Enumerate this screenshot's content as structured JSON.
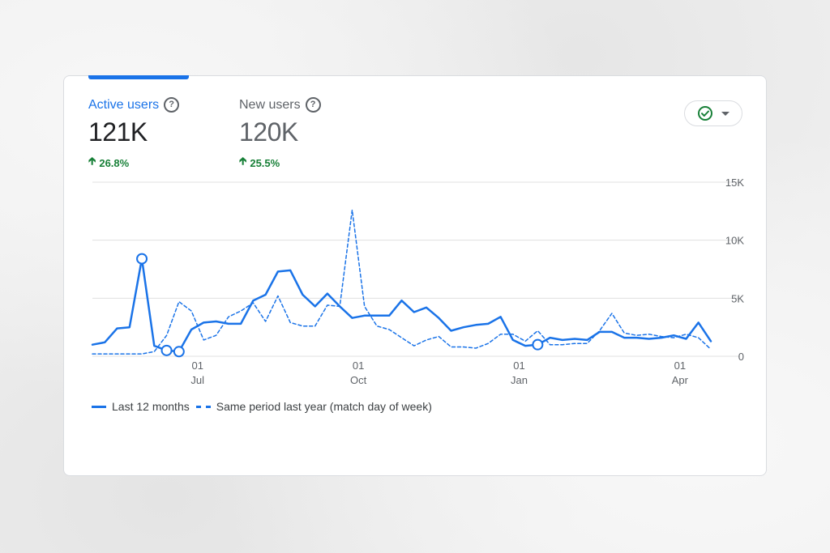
{
  "metrics": [
    {
      "label": "Active users",
      "value": "121K",
      "change": "26.8%",
      "selected": true
    },
    {
      "label": "New users",
      "value": "120K",
      "change": "25.5%",
      "selected": false
    }
  ],
  "colors": {
    "accent": "#1a73e8",
    "positive": "#188038",
    "grid": "#e0e0e0",
    "text_secondary": "#5f6368"
  },
  "icons": {
    "help": "question-circle-icon",
    "status": "check-circle-icon",
    "dropdown": "caret-down-icon",
    "change": "arrow-up-icon"
  },
  "legend": {
    "current": "Last 12 months",
    "previous": "Same period last year (match day of week)"
  },
  "chart_data": {
    "type": "line",
    "y_ticks": [
      "15K",
      "10K",
      "5K",
      "0"
    ],
    "ylim": [
      0,
      15000
    ],
    "x_ticks": [
      {
        "day": "01",
        "month": "Jul",
        "index": 8.5
      },
      {
        "day": "01",
        "month": "Oct",
        "index": 21.5
      },
      {
        "day": "01",
        "month": "Jan",
        "index": 34.5
      },
      {
        "day": "01",
        "month": "Apr",
        "index": 47.5
      }
    ],
    "series": [
      {
        "name": "Last 12 months",
        "style": "solid",
        "values": [
          1000,
          1200,
          2400,
          2500,
          8400,
          900,
          500,
          400,
          2300,
          2900,
          3000,
          2800,
          2800,
          4800,
          5300,
          7300,
          7400,
          5300,
          4300,
          5400,
          4300,
          3300,
          3500,
          3500,
          3500,
          4800,
          3800,
          4200,
          3300,
          2200,
          2500,
          2700,
          2800,
          3400,
          1400,
          900,
          1000,
          1600,
          1400,
          1500,
          1400,
          2100,
          2100,
          1600,
          1600,
          1500,
          1600,
          1800,
          1500,
          2900,
          1300
        ],
        "markers": [
          4,
          6,
          7,
          36
        ]
      },
      {
        "name": "Same period last year (match day of week)",
        "style": "dashed",
        "values": [
          200,
          200,
          200,
          200,
          200,
          400,
          1800,
          4700,
          3900,
          1400,
          1800,
          3400,
          3900,
          4600,
          3000,
          5200,
          2900,
          2600,
          2600,
          4400,
          4300,
          12600,
          4300,
          2600,
          2300,
          1600,
          900,
          1400,
          1700,
          800,
          800,
          700,
          1100,
          1900,
          1900,
          1300,
          2200,
          1000,
          1000,
          1100,
          1100,
          2200,
          3700,
          2000,
          1800,
          1900,
          1700,
          1600,
          1900,
          1600,
          600
        ]
      }
    ],
    "grid": true,
    "legend_position": "bottom-left"
  }
}
